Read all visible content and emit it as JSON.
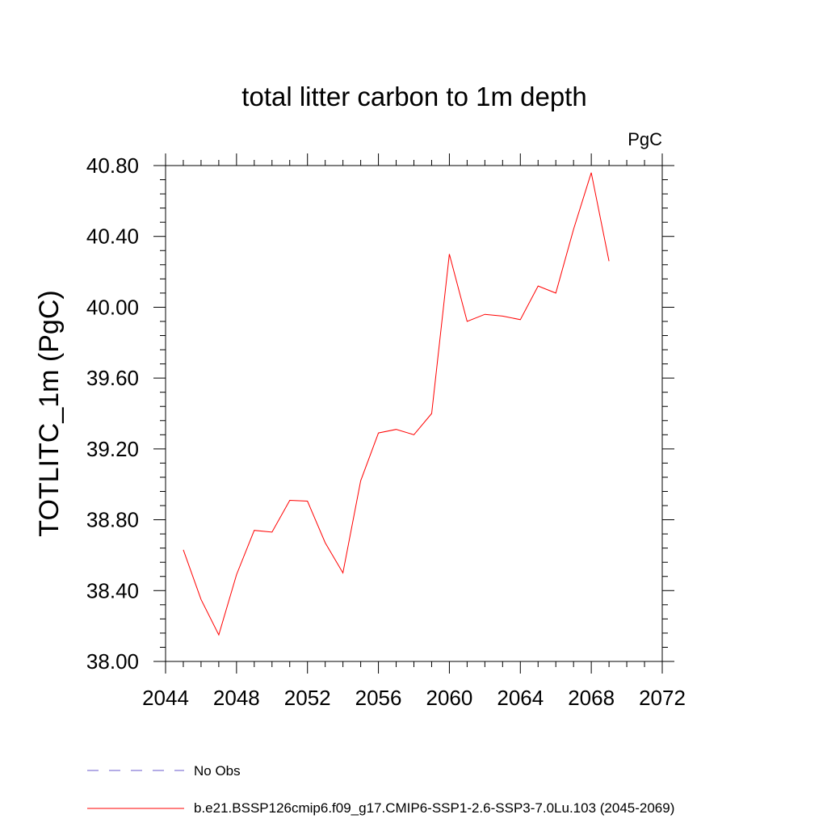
{
  "chart_data": {
    "type": "line",
    "title": "total litter carbon to 1m depth",
    "units_label": "PgC",
    "ylabel": "TOTLITC_1m  (PgC)",
    "xlabel": "",
    "xlim": [
      2044,
      2072
    ],
    "ylim": [
      38.0,
      40.8
    ],
    "x_ticks": [
      2044,
      2048,
      2052,
      2056,
      2060,
      2064,
      2068,
      2072
    ],
    "x_tick_labels": [
      "2044",
      "2048",
      "2052",
      "2056",
      "2060",
      "2064",
      "2068",
      "2072"
    ],
    "y_ticks": [
      38.0,
      38.4,
      38.8,
      39.2,
      39.6,
      40.0,
      40.4,
      40.8
    ],
    "y_tick_labels": [
      "38.00",
      "38.40",
      "38.80",
      "39.20",
      "39.60",
      "40.00",
      "40.40",
      "40.80"
    ],
    "grid": false,
    "series": [
      {
        "name": "b.e21.BSSP126cmip6.f09_g17.CMIP6-SSP1-2.6-SSP3-7.0Lu.103 (2045-2069)",
        "color": "#ff0000",
        "x": [
          2045,
          2046,
          2047,
          2048,
          2049,
          2050,
          2051,
          2052,
          2053,
          2054,
          2055,
          2056,
          2057,
          2058,
          2059,
          2060,
          2061,
          2062,
          2063,
          2064,
          2065,
          2066,
          2067,
          2068,
          2069
        ],
        "y": [
          38.63,
          38.35,
          38.15,
          38.49,
          38.74,
          38.73,
          38.91,
          38.905,
          38.67,
          38.5,
          39.02,
          39.29,
          39.31,
          39.28,
          39.4,
          40.3,
          39.92,
          39.96,
          39.95,
          39.93,
          40.12,
          40.08,
          40.44,
          40.76,
          40.26
        ]
      }
    ],
    "legend": {
      "placement": "bottom-left",
      "entries": [
        {
          "label": "No Obs",
          "color": "#6a5acd",
          "style": "dashed"
        },
        {
          "label": "b.e21.BSSP126cmip6.f09_g17.CMIP6-SSP1-2.6-SSP3-7.0Lu.103 (2045-2069)",
          "color": "#ff0000",
          "style": "solid"
        }
      ]
    }
  }
}
